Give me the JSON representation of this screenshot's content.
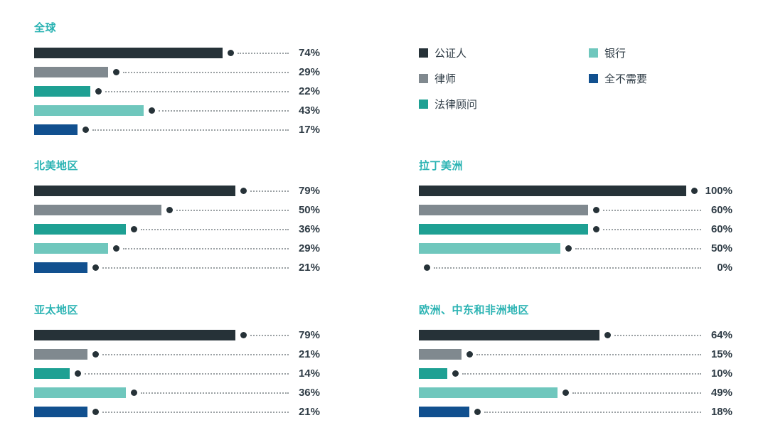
{
  "chart_data": {
    "type": "bar",
    "orientation": "horizontal",
    "unit": "%",
    "xlim": [
      0,
      100
    ],
    "grid": false,
    "legend_position": "top-right",
    "categories": [
      "公证人",
      "律师",
      "法律顾问",
      "银行",
      "全不需要"
    ],
    "series_colors": [
      "#263238",
      "#80898f",
      "#1ea093",
      "#6fc7bd",
      "#11508f"
    ],
    "panels": [
      {
        "title": "全球",
        "values": [
          74,
          29,
          22,
          43,
          17
        ],
        "labels": [
          "74%",
          "29%",
          "22%",
          "43%",
          "17%"
        ]
      },
      {
        "title": "北美地区",
        "values": [
          79,
          50,
          36,
          29,
          21
        ],
        "labels": [
          "79%",
          "50%",
          "36%",
          "29%",
          "21%"
        ]
      },
      {
        "title": "拉丁美洲",
        "values": [
          100,
          60,
          60,
          50,
          0
        ],
        "labels": [
          "100%",
          "60%",
          "60%",
          "50%",
          "0%"
        ]
      },
      {
        "title": "亚太地区",
        "values": [
          79,
          21,
          14,
          36,
          21
        ],
        "labels": [
          "79%",
          "21%",
          "14%",
          "36%",
          "21%"
        ]
      },
      {
        "title": "欧洲、中东和非洲地区",
        "values": [
          64,
          15,
          10,
          49,
          18
        ],
        "labels": [
          "64%",
          "15%",
          "10%",
          "49%",
          "18%"
        ]
      }
    ]
  },
  "legend": {
    "items": [
      {
        "label": "公证人",
        "color": "#263238"
      },
      {
        "label": "律师",
        "color": "#80898f"
      },
      {
        "label": "法律顾问",
        "color": "#1ea093"
      },
      {
        "label": "银行",
        "color": "#6fc7bd"
      },
      {
        "label": "全不需要",
        "color": "#11508f"
      }
    ]
  },
  "colors": {
    "panel_title": "#2bb3b3",
    "value_label": "#2e3b45",
    "legend_text": "#2e3b45",
    "marker_dot": "#263238",
    "leader_line": "#9aa0a3",
    "background": "#ffffff"
  }
}
